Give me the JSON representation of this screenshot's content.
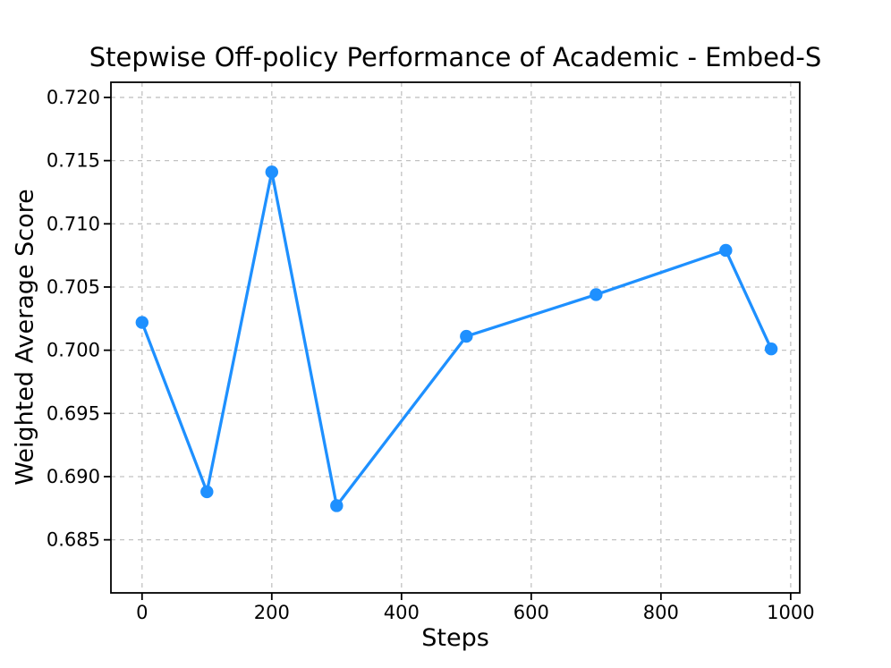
{
  "chart_data": {
    "type": "line",
    "title": "Stepwise Off-policy Performance of Academic - Embed-S",
    "xlabel": "Steps",
    "ylabel": "Weighted Average Score",
    "x": [
      0,
      100,
      200,
      300,
      500,
      700,
      900,
      970
    ],
    "y": [
      0.7022,
      0.6888,
      0.7141,
      0.6877,
      0.7011,
      0.7044,
      0.7079,
      0.7001
    ],
    "xlim": [
      -48,
      1014
    ],
    "ylim": [
      0.6808,
      0.7212
    ],
    "xticks": {
      "values": [
        0,
        200,
        400,
        600,
        800,
        1000
      ],
      "labels": [
        "0",
        "200",
        "400",
        "600",
        "800",
        "1000"
      ]
    },
    "yticks": {
      "values": [
        0.685,
        0.69,
        0.695,
        0.7,
        0.705,
        0.71,
        0.715,
        0.72
      ],
      "labels": [
        "0.685",
        "0.690",
        "0.695",
        "0.700",
        "0.705",
        "0.710",
        "0.715",
        "0.720"
      ]
    },
    "grid": true,
    "grid_style": "dashed",
    "legend": false,
    "colors": {
      "line": "#1E90FF",
      "marker": "#1E90FF",
      "grid": "#c2c2c2",
      "axis": "#000000",
      "background": "#ffffff",
      "text": "#000000"
    }
  }
}
